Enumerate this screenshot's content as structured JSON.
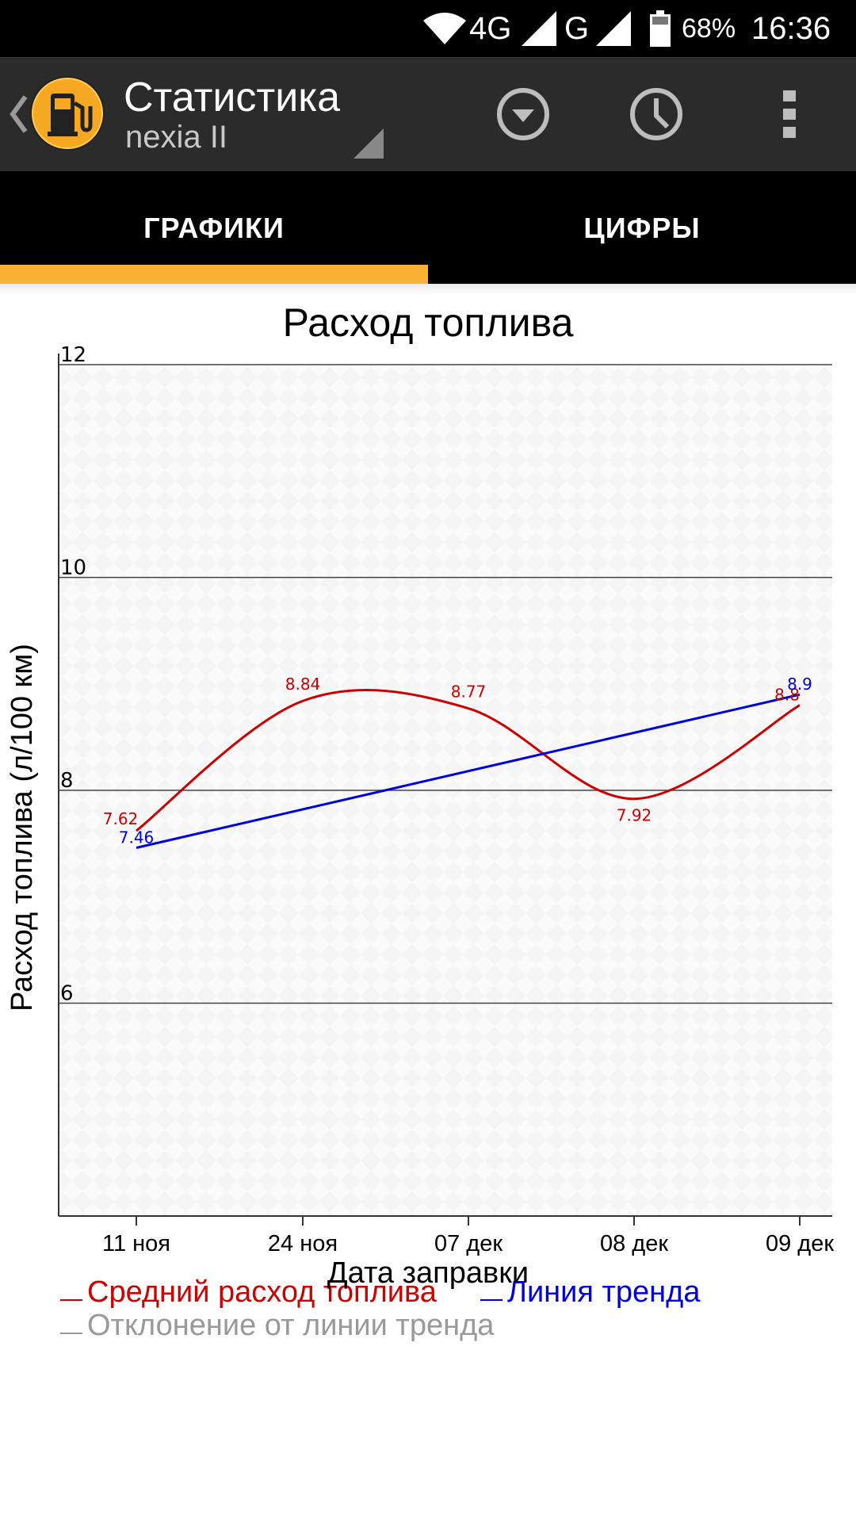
{
  "status_bar": {
    "network": "4G",
    "network2": "G",
    "battery": "68%",
    "time": "16:36"
  },
  "action_bar": {
    "title": "Статистика",
    "subtitle": "nexia II",
    "icons": [
      "back-chevron-icon",
      "fuel-pump-icon",
      "dropdown-circle-icon",
      "clock-icon",
      "overflow-menu-icon"
    ]
  },
  "tabs": [
    {
      "label": "ГРАФИКИ",
      "selected": true
    },
    {
      "label": "ЦИФРЫ",
      "selected": false
    }
  ],
  "colors": {
    "accent": "#f9b233",
    "series_red": "#cc0000",
    "series_blue": "#0000dd",
    "series_gray": "#999999"
  },
  "chart_data": {
    "type": "line",
    "title": "Расход топлива",
    "xlabel": "Дата заправки",
    "ylabel": "Расход топлива (л/100 км)",
    "categories": [
      "11 ноя",
      "24 ноя",
      "07 дек",
      "08 дек",
      "09 дек"
    ],
    "ylim": [
      4,
      12
    ],
    "yticks": [
      "12",
      "10",
      "8",
      "6"
    ],
    "grid": true,
    "series": [
      {
        "name": "Средний расход топлива",
        "color": "#cc0000",
        "points": [
          {
            "x": "11 ноя",
            "y": 7.62,
            "label": "7.62"
          },
          {
            "x": "24 ноя",
            "y": 8.84,
            "label": "8.84"
          },
          {
            "x": "07 дек",
            "y": 8.77,
            "label": "8.77"
          },
          {
            "x": "08 дек",
            "y": 7.92,
            "label": "7.92"
          },
          {
            "x": "09 дек",
            "y": 8.8,
            "label": "8.8"
          }
        ]
      },
      {
        "name": "Линия тренда",
        "color": "#0000dd",
        "points": [
          {
            "x": "11 ноя",
            "y": 7.46,
            "label": "7.46"
          },
          {
            "x": "09 дек",
            "y": 8.9,
            "label": "8.9"
          }
        ]
      },
      {
        "name": "Отклонение от линии тренда",
        "color": "#999999",
        "points": []
      }
    ],
    "legend": [
      {
        "label": "Средний расход топлива",
        "color": "#cc0000"
      },
      {
        "label": "Линия тренда",
        "color": "#0000dd"
      },
      {
        "label": "Отклонение от линии тренда",
        "color": "#999999"
      }
    ]
  }
}
